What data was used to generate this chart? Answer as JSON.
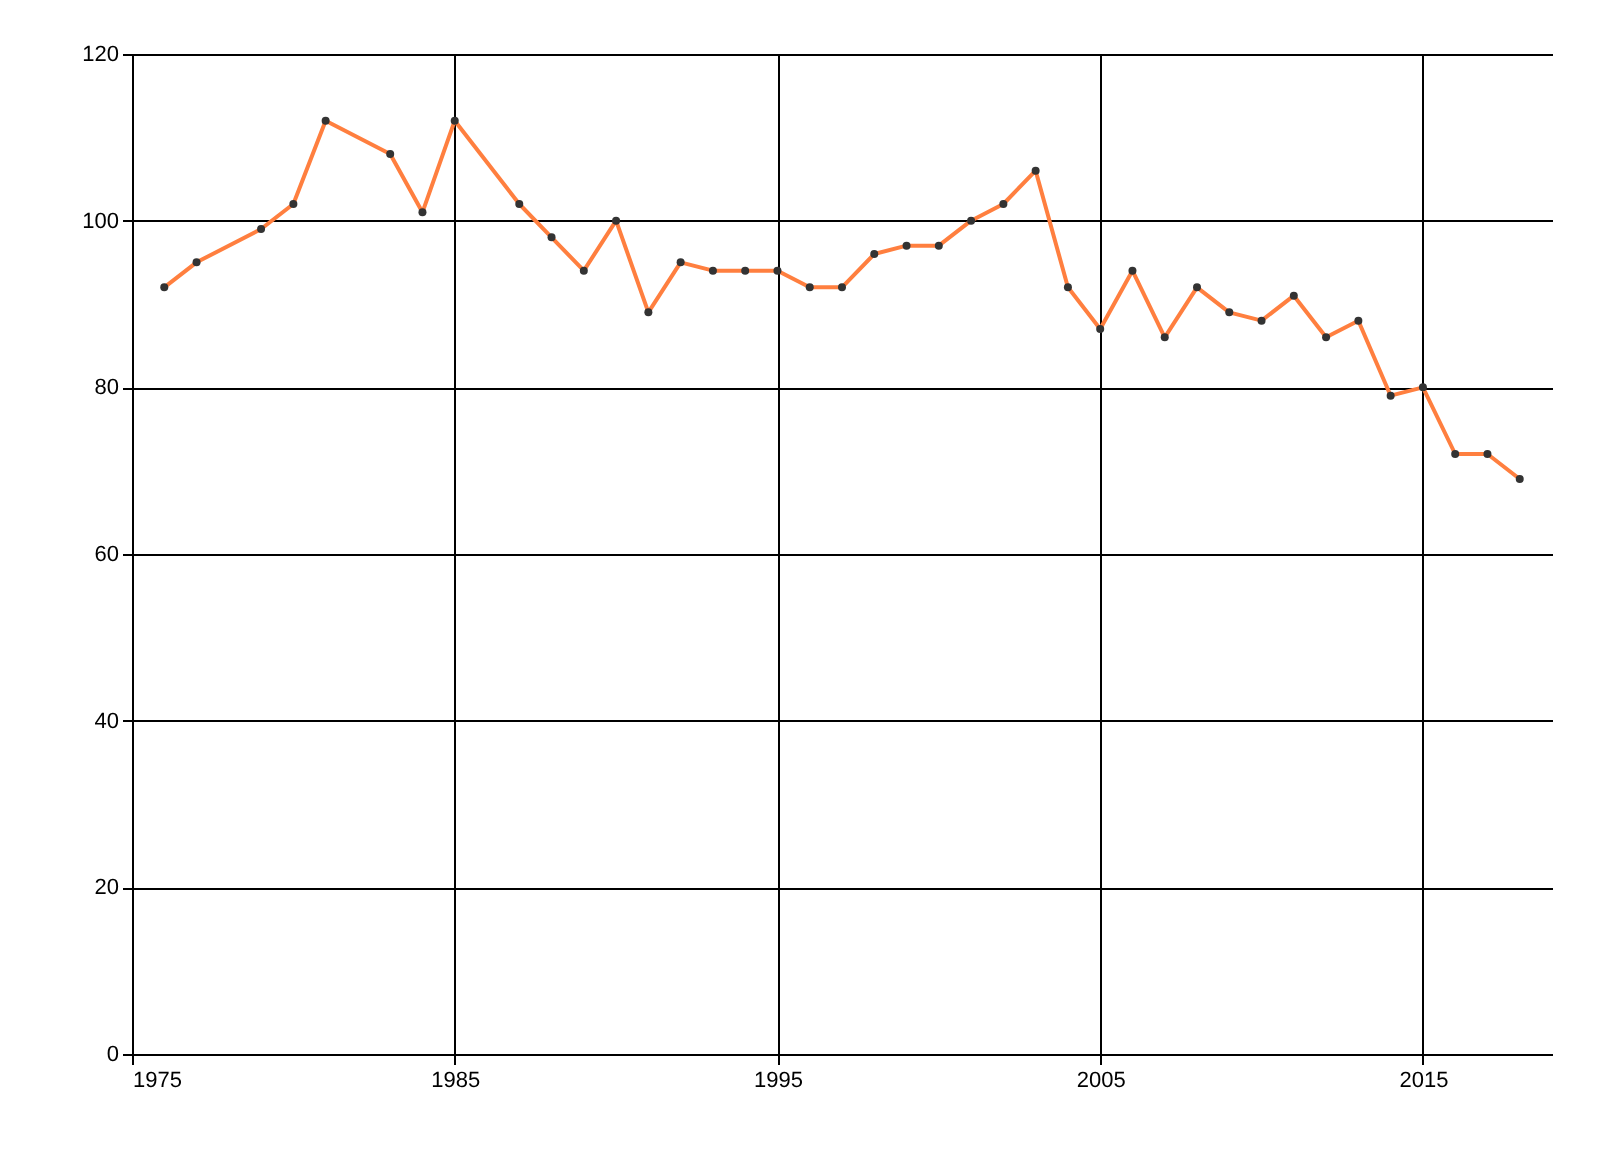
{
  "chart_data": {
    "type": "line",
    "x": [
      1976,
      1977,
      1979,
      1980,
      1981,
      1983,
      1984,
      1985,
      1987,
      1988,
      1989,
      1990,
      1991,
      1992,
      1993,
      1994,
      1995,
      1996,
      1997,
      1998,
      1999,
      2000,
      2001,
      2002,
      2003,
      2004,
      2005,
      2006,
      2007,
      2008,
      2009,
      2010,
      2011,
      2012,
      2013,
      2014,
      2015,
      2016,
      2017,
      2018
    ],
    "series": [
      {
        "color": "#ff7f3f",
        "values": [
          92,
          95,
          99,
          102,
          112,
          108,
          101,
          112,
          102,
          98,
          94,
          100,
          89,
          95,
          94,
          94,
          94,
          92,
          92,
          96,
          97,
          97,
          100,
          102,
          106,
          92,
          87,
          94,
          86,
          92,
          89,
          88,
          91,
          86,
          88,
          79,
          80,
          72,
          72,
          69
        ]
      }
    ],
    "xlim": [
      1975,
      2019
    ],
    "xticks": [
      1975,
      1985,
      1995,
      2005,
      2015
    ],
    "ylim": [
      0,
      120
    ],
    "yticks": [
      0,
      20,
      40,
      60,
      80,
      100,
      120
    ],
    "grid": true,
    "marker": "circle",
    "line_style": "solid"
  }
}
